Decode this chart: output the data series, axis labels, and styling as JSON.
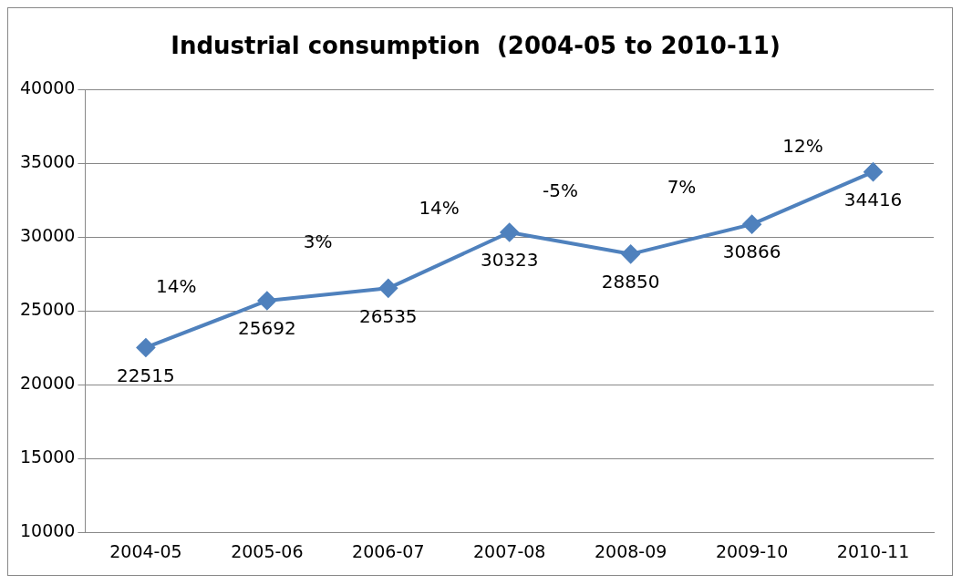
{
  "chart_data": {
    "type": "line",
    "title": "Industrial consumption  (2004-05 to 2010-11)",
    "categories": [
      "2004-05",
      "2005-06",
      "2006-07",
      "2007-08",
      "2008-09",
      "2009-10",
      "2010-11"
    ],
    "series": [
      {
        "color": "#4f81bd",
        "values": [
          22515,
          25692,
          26535,
          30323,
          28850,
          30866,
          34416
        ]
      }
    ],
    "ylim": [
      10000,
      40000
    ],
    "yticks": [
      10000,
      15000,
      20000,
      25000,
      30000,
      35000,
      40000
    ],
    "grid": "y",
    "legend": false,
    "marker": "diamond",
    "line_style": "solid",
    "data_labels": true,
    "annotations": [
      "14%",
      "3%",
      "14%",
      "-5%",
      "7%",
      "12%"
    ]
  }
}
